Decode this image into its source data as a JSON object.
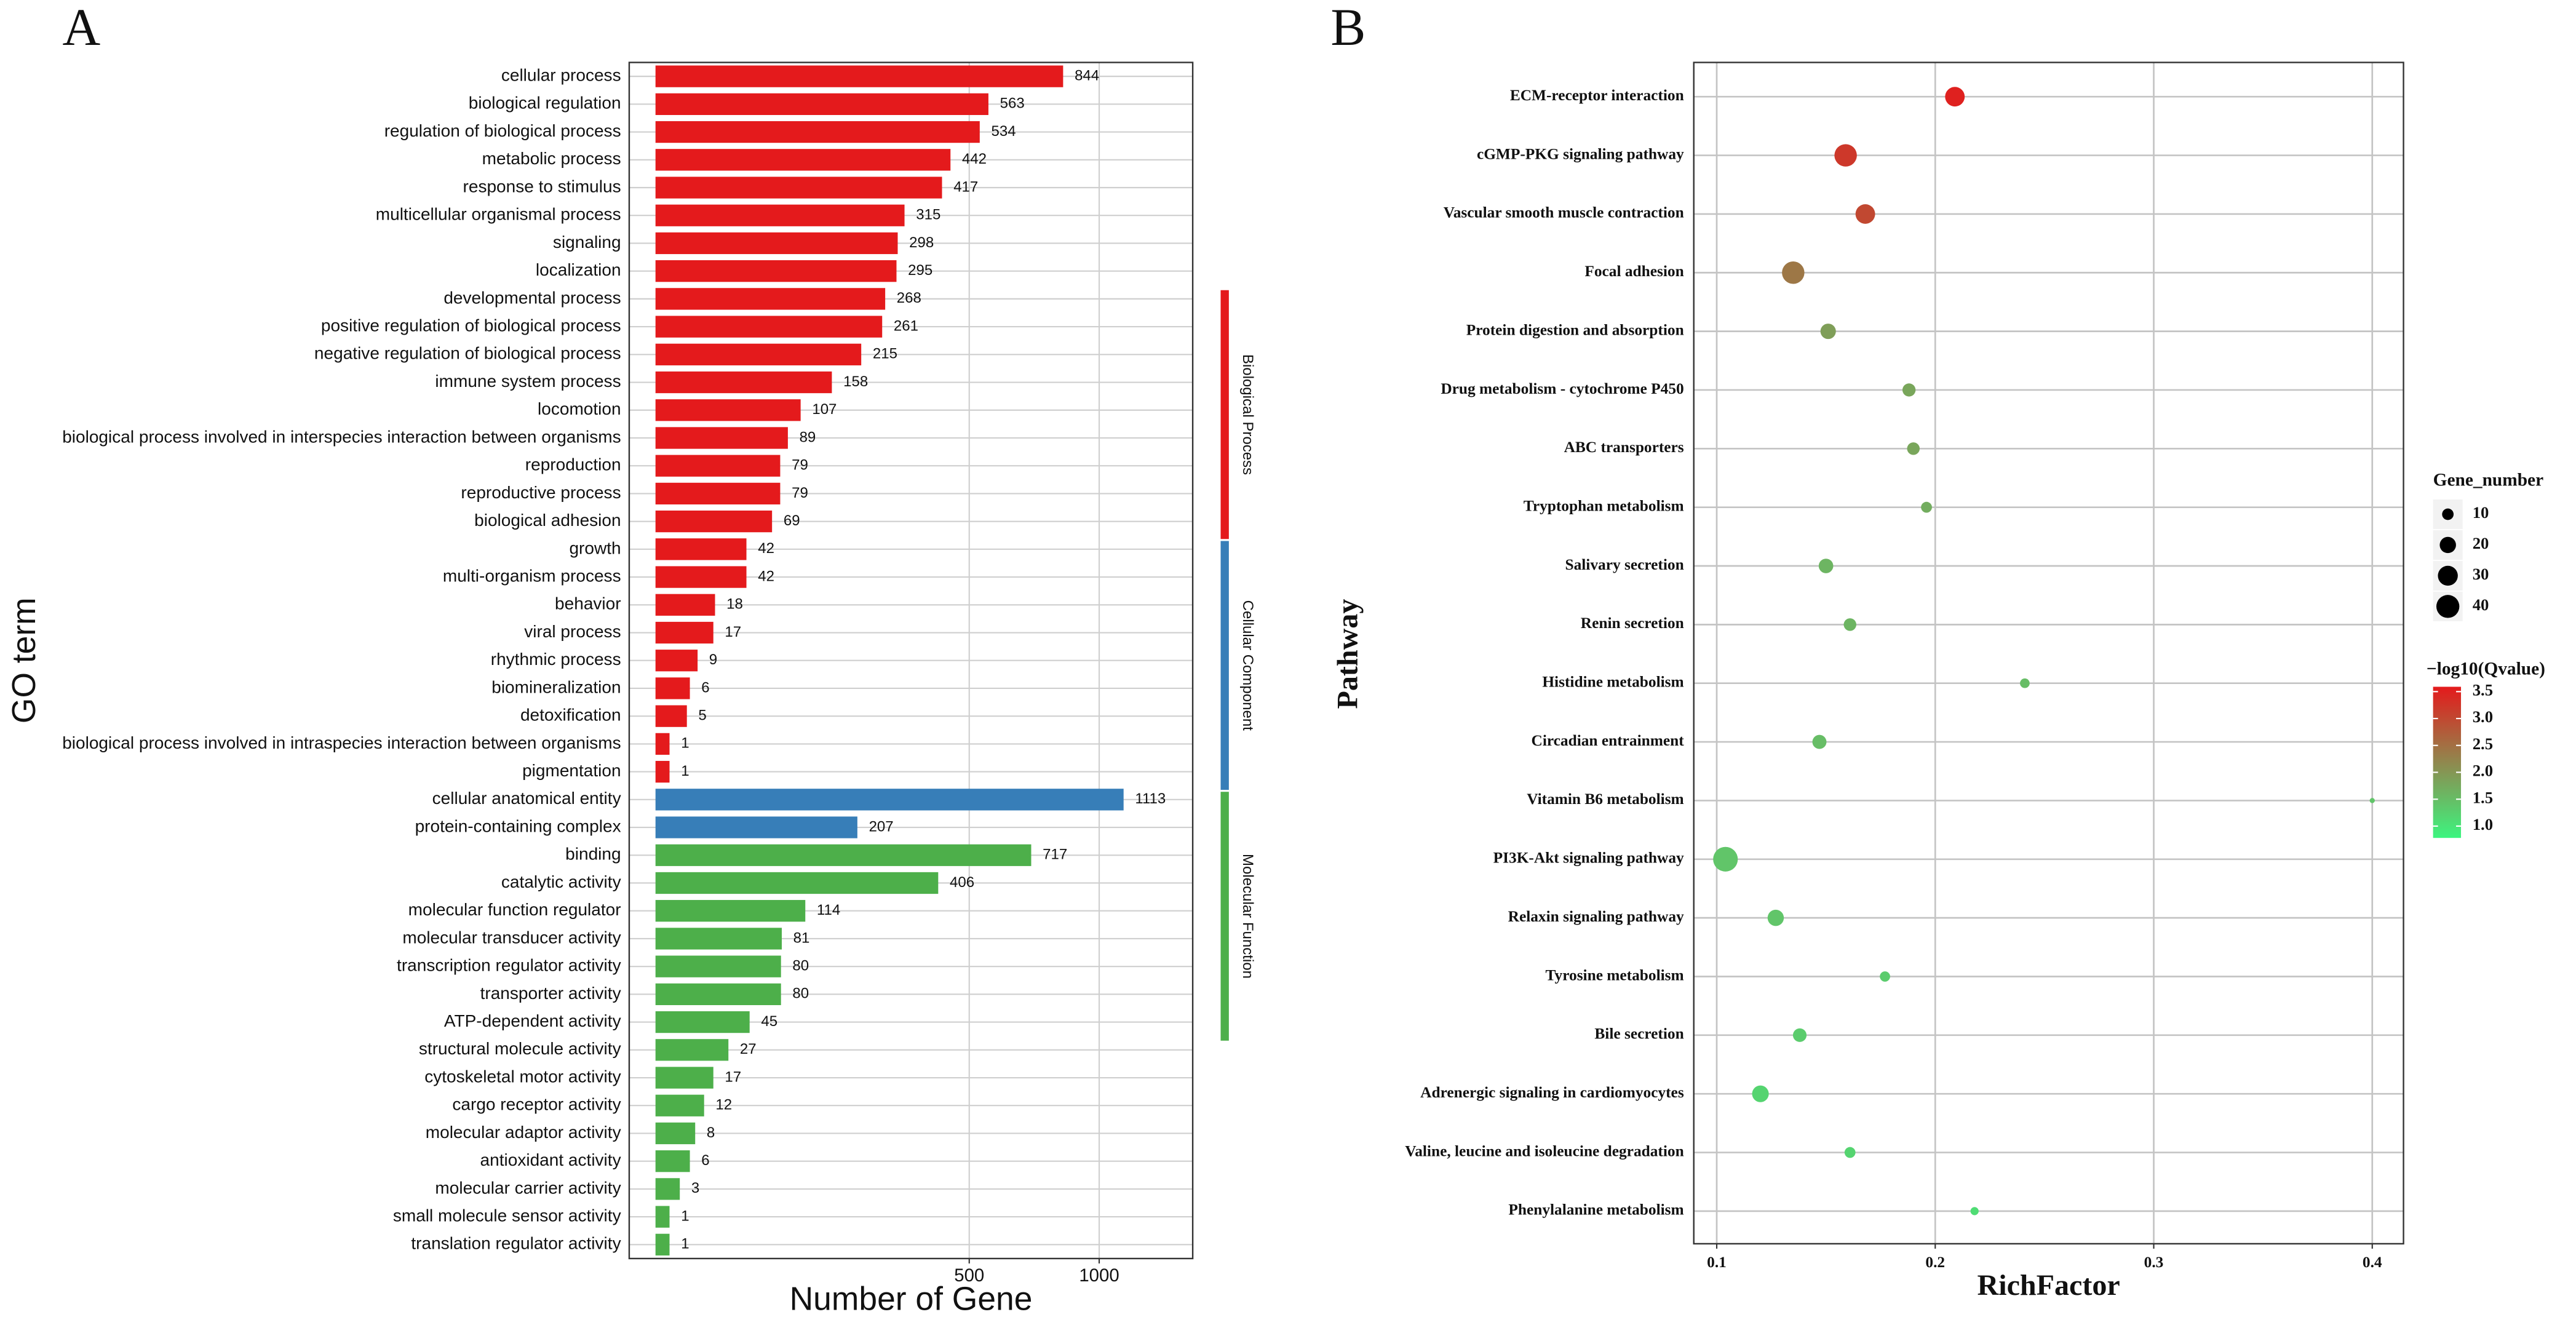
{
  "chart_data": [
    {
      "type": "bar",
      "orientation": "horizontal",
      "panel": "A",
      "xlabel": "Number of Gene",
      "ylabel": "GO term",
      "xscale": "sqrt",
      "xlim": [
        0,
        1466
      ],
      "xticks": [
        500,
        1000
      ],
      "grid": true,
      "series": [
        {
          "name": "Biological Process",
          "color": "#e41a1c",
          "categories": [
            "cellular process",
            "biological regulation",
            "regulation of biological process",
            "metabolic process",
            "response to stimulus",
            "multicellular organismal process",
            "signaling",
            "localization",
            "developmental process",
            "positive regulation of biological process",
            "negative regulation of biological process",
            "immune system process",
            "locomotion",
            "biological process involved in interspecies interaction between organisms",
            "reproduction",
            "reproductive process",
            "biological adhesion",
            "growth",
            "multi-organism process",
            "behavior",
            "viral process",
            "rhythmic process",
            "biomineralization",
            "detoxification",
            "biological process involved in intraspecies interaction between organisms",
            "pigmentation"
          ],
          "values": [
            844,
            563,
            534,
            442,
            417,
            315,
            298,
            295,
            268,
            261,
            215,
            158,
            107,
            89,
            79,
            79,
            69,
            42,
            42,
            18,
            17,
            9,
            6,
            5,
            1,
            1
          ]
        },
        {
          "name": "Cellular Component",
          "color": "#377eb8",
          "categories": [
            "cellular anatomical entity",
            "protein-containing complex"
          ],
          "values": [
            1113,
            207
          ]
        },
        {
          "name": "Molecular Function",
          "color": "#4daf4a",
          "categories": [
            "binding",
            "catalytic activity",
            "molecular function regulator",
            "molecular transducer activity",
            "transcription regulator activity",
            "transporter activity",
            "ATP-dependent activity",
            "structural molecule activity",
            "cytoskeletal motor activity",
            "cargo receptor activity",
            "molecular adaptor activity",
            "antioxidant activity",
            "molecular carrier activity",
            "small molecule sensor activity",
            "translation regulator activity"
          ],
          "values": [
            717,
            406,
            114,
            81,
            80,
            80,
            45,
            27,
            17,
            12,
            8,
            6,
            3,
            1,
            1
          ]
        }
      ]
    },
    {
      "type": "scatter",
      "panel": "B",
      "xlabel": "RichFactor",
      "ylabel": "Pathway",
      "categories": [
        "ECM-receptor interaction",
        "cGMP-PKG signaling pathway",
        "Vascular smooth muscle contraction",
        "Focal adhesion",
        "Protein digestion and absorption",
        "Drug metabolism - cytochrome P450",
        "ABC transporters",
        "Tryptophan metabolism",
        "Salivary secretion",
        "Renin secretion",
        "Histidine metabolism",
        "Circadian entrainment",
        "Vitamin B6 metabolism",
        "PI3K-Akt signaling pathway",
        "Relaxin signaling pathway",
        "Tyrosine metabolism",
        "Bile secretion",
        "Adrenergic signaling in cardiomyocytes",
        "Valine, leucine and isoleucine degradation",
        "Phenylalanine metabolism"
      ],
      "x": [
        0.209,
        0.159,
        0.168,
        0.135,
        0.151,
        0.188,
        0.19,
        0.196,
        0.15,
        0.161,
        0.241,
        0.147,
        0.4,
        0.104,
        0.127,
        0.177,
        0.138,
        0.12,
        0.161,
        0.218
      ],
      "gene_number": [
        29,
        38,
        29,
        38,
        18,
        13,
        12,
        9,
        16,
        12,
        7,
        15,
        2,
        46,
        20,
        8,
        14,
        21,
        9,
        5
      ],
      "qvalue": [
        3.5,
        3.2,
        3.0,
        2.4,
        1.9,
        1.8,
        1.8,
        1.7,
        1.6,
        1.6,
        1.5,
        1.5,
        1.4,
        1.4,
        1.4,
        1.3,
        1.3,
        1.2,
        1.2,
        1.1
      ],
      "xlim": [
        0.0895,
        0.4143
      ],
      "xticks": [
        0.1,
        0.2,
        0.3,
        0.4
      ],
      "grid": true,
      "size_legend": {
        "title": "Gene_number",
        "values": [
          10,
          20,
          30,
          40
        ]
      },
      "color_legend": {
        "title": "−log10(Qvalue)",
        "lim": [
          0.78,
          3.59
        ],
        "ticks": [
          {
            "value": 1.0,
            "label": "1.0"
          },
          {
            "value": 1.5,
            "label": "1.5"
          },
          {
            "value": 2.0,
            "label": "2.0"
          },
          {
            "value": 2.5,
            "label": "2.5"
          },
          {
            "value": 3.0,
            "label": "3.0"
          },
          {
            "value": 3.5,
            "label": "3.5"
          }
        ],
        "color_low": "#3cf57f",
        "color_high": "#e41a1c"
      }
    }
  ]
}
